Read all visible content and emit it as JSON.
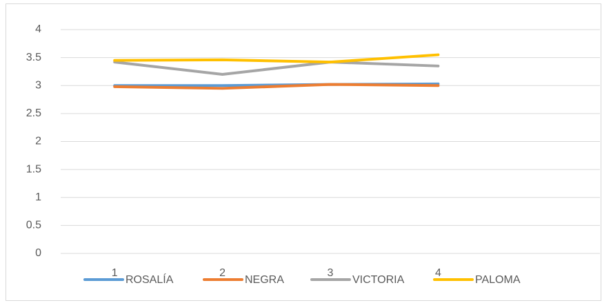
{
  "chart_data": {
    "type": "line",
    "categories": [
      "1",
      "2",
      "3",
      "4",
      null
    ],
    "series": [
      {
        "name": "ROSALÍA",
        "color": "#5b9bd5",
        "values": [
          3.0,
          3.0,
          3.02,
          3.03,
          null
        ]
      },
      {
        "name": "NEGRA",
        "color": "#ed7d31",
        "values": [
          2.98,
          2.95,
          3.02,
          3.0,
          null
        ]
      },
      {
        "name": "VICTORIA",
        "color": "#a5a5a5",
        "values": [
          3.42,
          3.2,
          3.42,
          3.35,
          null
        ]
      },
      {
        "name": "PALOMA",
        "color": "#ffc000",
        "values": [
          3.45,
          3.46,
          3.42,
          3.55,
          null
        ]
      }
    ],
    "ylim": [
      0,
      4
    ],
    "yticks": [
      0,
      0.5,
      1,
      1.5,
      2,
      2.5,
      3,
      3.5,
      4
    ],
    "grid": true,
    "legend": "bottom"
  }
}
